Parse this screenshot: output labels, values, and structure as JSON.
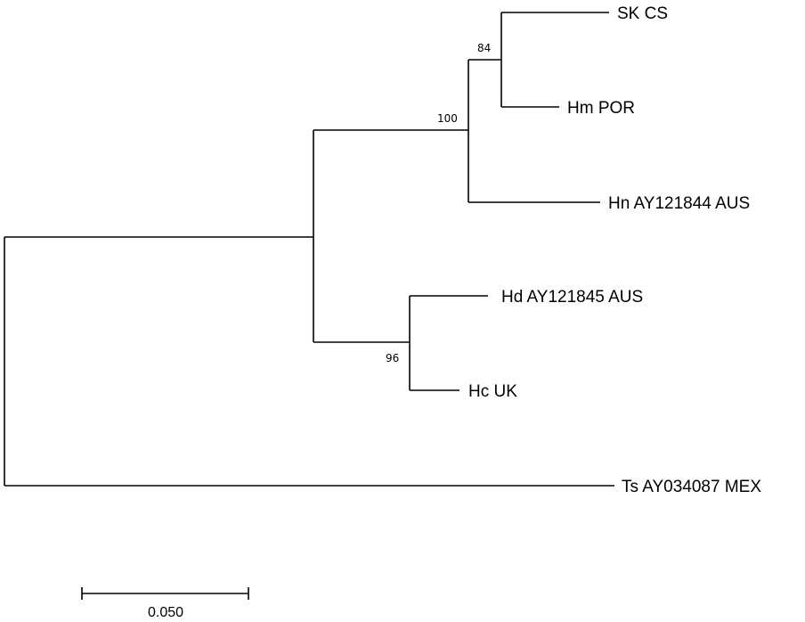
{
  "tree": {
    "taxa": [
      {
        "id": "sk",
        "label": "SK CS"
      },
      {
        "id": "hm",
        "label": "Hm POR"
      },
      {
        "id": "hn",
        "label": "Hn AY121844 AUS"
      },
      {
        "id": "hd",
        "label": "Hd AY121845 AUS"
      },
      {
        "id": "hc",
        "label": "Hc UK"
      },
      {
        "id": "ts",
        "label": "Ts AY034087 MEX"
      }
    ],
    "bootstrap": [
      {
        "node": "sk-hm",
        "value": "84"
      },
      {
        "node": "sk-hm-hn",
        "value": "100"
      },
      {
        "node": "hd-hc",
        "value": "96"
      }
    ],
    "scale_bar": {
      "label": "0.050",
      "length": 0.05
    }
  }
}
